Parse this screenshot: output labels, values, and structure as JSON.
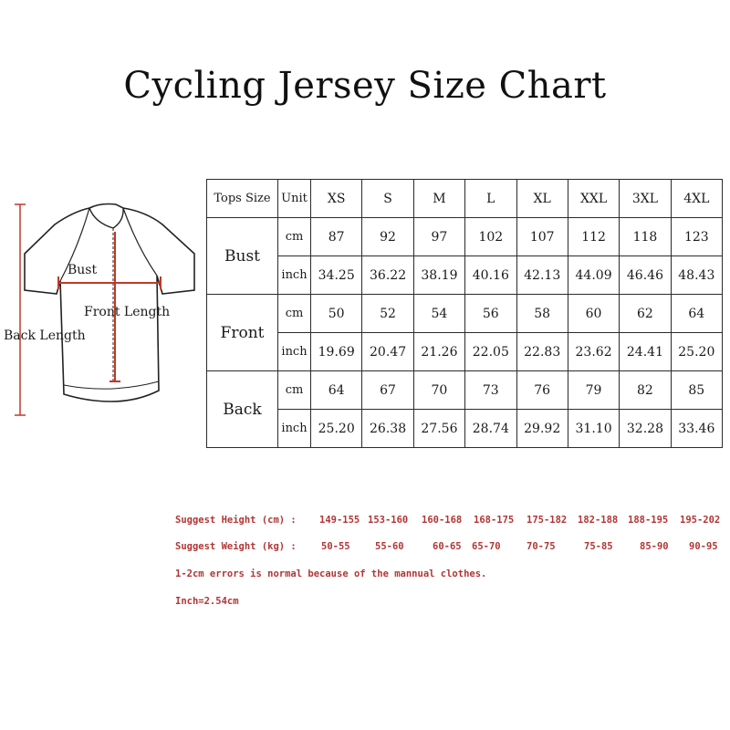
{
  "title": "Cycling Jersey Size Chart",
  "diagram": {
    "bust_label": "Bust",
    "front_length_label": "Front Length",
    "back_length_label": "Back Length"
  },
  "table": {
    "corner_label": "Tops Size",
    "unit_header": "Unit",
    "sizes": [
      "XS",
      "S",
      "M",
      "L",
      "XL",
      "XXL",
      "3XL",
      "4XL"
    ],
    "groups": [
      {
        "name": "Bust",
        "rows": [
          {
            "unit": "cm",
            "values": [
              "87",
              "92",
              "97",
              "102",
              "107",
              "112",
              "118",
              "123"
            ]
          },
          {
            "unit": "inch",
            "values": [
              "34.25",
              "36.22",
              "38.19",
              "40.16",
              "42.13",
              "44.09",
              "46.46",
              "48.43"
            ]
          }
        ]
      },
      {
        "name": "Front",
        "rows": [
          {
            "unit": "cm",
            "values": [
              "50",
              "52",
              "54",
              "56",
              "58",
              "60",
              "62",
              "64"
            ]
          },
          {
            "unit": "inch",
            "values": [
              "19.69",
              "20.47",
              "21.26",
              "22.05",
              "22.83",
              "23.62",
              "24.41",
              "25.20"
            ]
          }
        ]
      },
      {
        "name": "Back",
        "rows": [
          {
            "unit": "cm",
            "values": [
              "64",
              "67",
              "70",
              "73",
              "76",
              "79",
              "82",
              "85"
            ]
          },
          {
            "unit": "inch",
            "values": [
              "25.20",
              "26.38",
              "27.56",
              "28.74",
              "29.92",
              "31.10",
              "32.28",
              "33.46"
            ]
          }
        ]
      }
    ]
  },
  "suggestions": {
    "height_label": "Suggest Height  (cm) :",
    "height_values": [
      "149-155",
      "153-160",
      "160-168",
      "168-175",
      "175-182",
      "182-188",
      "188-195",
      "195-202"
    ],
    "weight_label": "Suggest Weight  (kg) :",
    "weight_values": [
      "50-55",
      "55-60",
      "60-65",
      "65-70",
      "70-75",
      "75-85",
      "85-90",
      "90-95"
    ],
    "note_errors": "1-2cm errors is normal because of the mannual clothes.",
    "note_inch": "Inch=2.54cm"
  },
  "colors": {
    "accent_red": "#b23535",
    "measure_red": "#c0392b",
    "line": "#2b2b2b"
  }
}
